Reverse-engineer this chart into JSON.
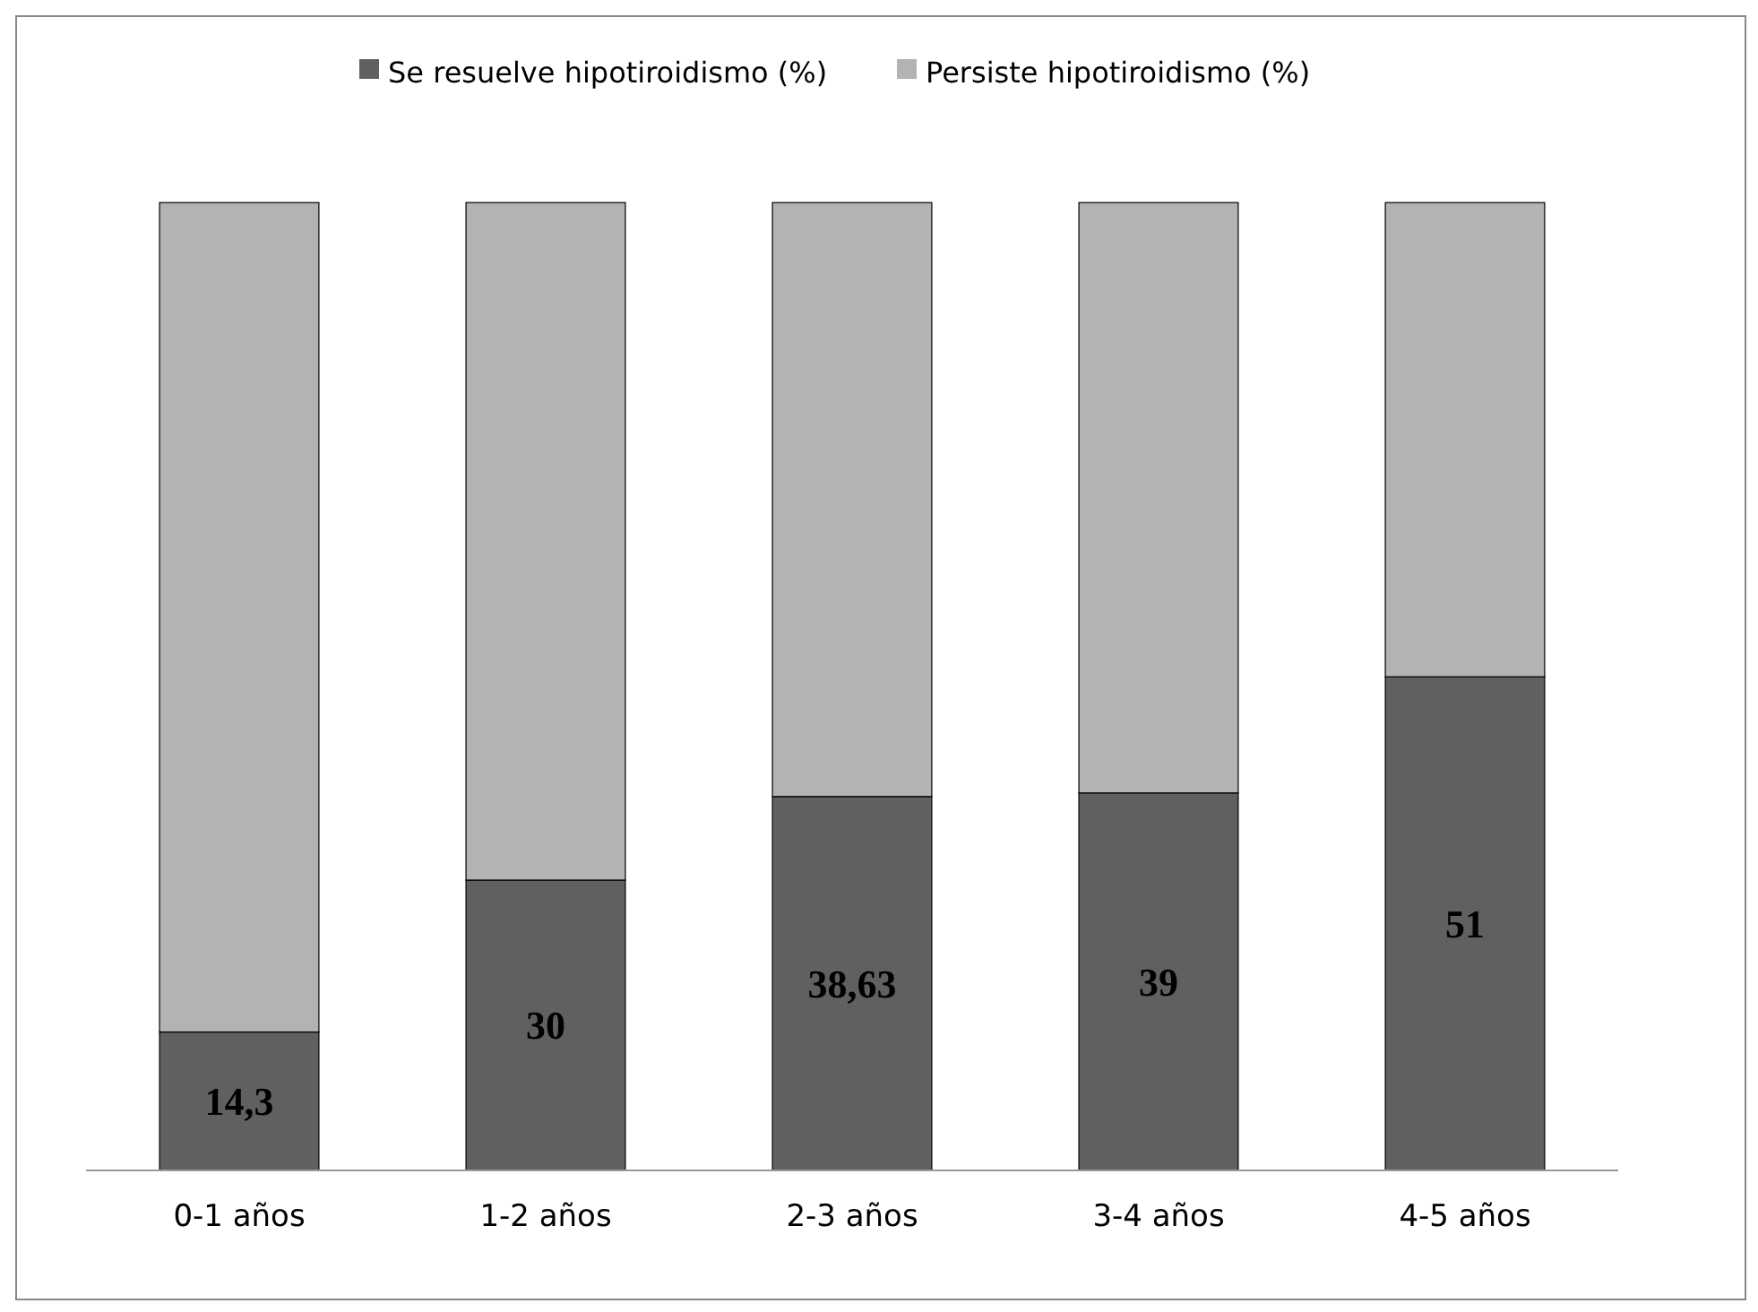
{
  "chart_data": {
    "type": "bar",
    "stacked": true,
    "legend": "top",
    "categories": [
      "0-1 años",
      "1-2 años",
      "2-3 años",
      "3-4 años",
      "4-5 años"
    ],
    "series": [
      {
        "name": "Se resuelve hipotiroidismo (%)",
        "color": "#606060",
        "values": [
          14.3,
          30,
          38.63,
          39,
          51
        ],
        "value_labels": [
          "14,3",
          "30",
          "38,63",
          "39",
          "51"
        ]
      },
      {
        "name": "Persiste hipotiroidismo (%)",
        "color": "#b3b3b3",
        "values": [
          85.7,
          70,
          61.37,
          61,
          49
        ]
      }
    ]
  }
}
